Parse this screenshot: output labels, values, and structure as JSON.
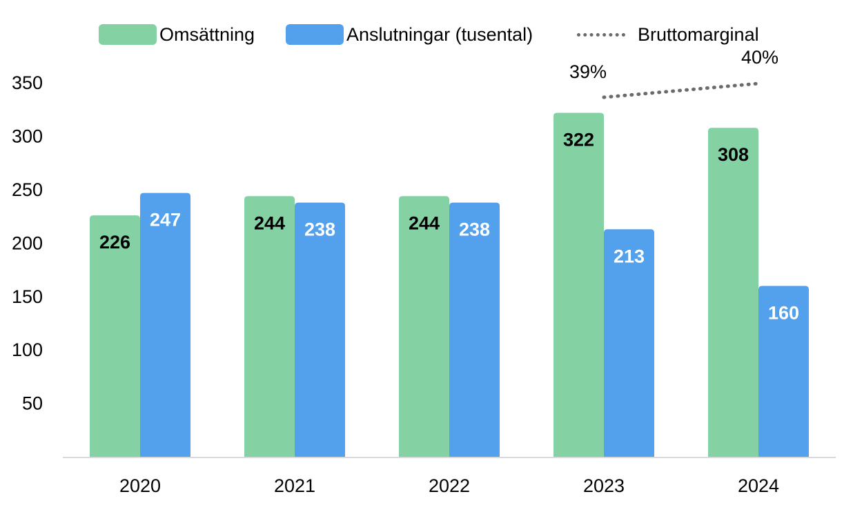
{
  "chart_data": {
    "type": "bar",
    "categories": [
      "2020",
      "2021",
      "2022",
      "2023",
      "2024"
    ],
    "series": [
      {
        "name": "Omsättning",
        "values": [
          226,
          244,
          244,
          322,
          308
        ],
        "color": "#84d1a4",
        "label_color": "#000000"
      },
      {
        "name": "Anslutningar (tusental)",
        "values": [
          247,
          238,
          238,
          213,
          160
        ],
        "color": "#53a0ec",
        "label_color": "#ffffff"
      }
    ],
    "line_series": {
      "name": "Bruttomarginal",
      "categories": [
        "2023",
        "2024"
      ],
      "labels": [
        "39%",
        "40%"
      ],
      "color": "#6b6b6b",
      "style": "dotted"
    },
    "yticks": [
      50,
      100,
      150,
      200,
      250,
      300,
      350
    ],
    "ylim": [
      0,
      350
    ],
    "grid": false,
    "legend_position": "top"
  }
}
